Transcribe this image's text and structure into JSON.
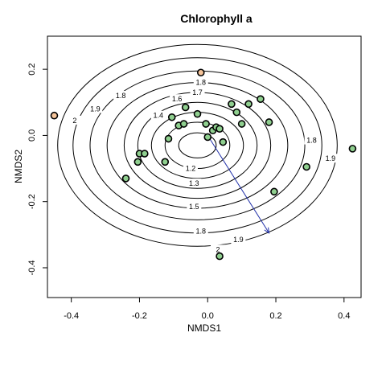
{
  "chart_data": {
    "type": "scatter",
    "title": "Chlorophyll a",
    "xlabel": "NMDS1",
    "ylabel": "NMDS2",
    "xlim": [
      -0.47,
      0.45
    ],
    "ylim": [
      -0.49,
      0.3
    ],
    "xticks": [
      "-0.4",
      "-0.2",
      "0.0",
      "0.2",
      "0.4"
    ],
    "xtick_values": [
      -0.4,
      -0.2,
      0.0,
      0.2,
      0.4
    ],
    "yticks": [
      "-0.4",
      "-0.2",
      "0.0",
      "0.2"
    ],
    "ytick_values": [
      -0.4,
      -0.2,
      0.0,
      0.2
    ],
    "grid": false,
    "contour_center": [
      -0.03,
      -0.03
    ],
    "contours": [
      {
        "level": "1.2",
        "rx": 0.055,
        "ry": 0.038,
        "label_at": [
          -0.05,
          -0.1
        ]
      },
      {
        "level": "1.3",
        "rx": 0.095,
        "ry": 0.07,
        "label_at": [
          -0.04,
          -0.145
        ]
      },
      {
        "level": "1.4",
        "rx": 0.135,
        "ry": 0.1,
        "label_at": [
          -0.145,
          0.06
        ]
      },
      {
        "level": "1.5",
        "rx": 0.175,
        "ry": 0.13,
        "label_at": [
          -0.04,
          -0.215
        ]
      },
      {
        "level": "1.6",
        "rx": 0.215,
        "ry": 0.16,
        "label_at": [
          -0.09,
          0.11
        ]
      },
      {
        "level": "1.7",
        "rx": 0.265,
        "ry": 0.19,
        "label_at": [
          -0.03,
          0.13
        ]
      },
      {
        "level": "1.8",
        "rx": 0.315,
        "ry": 0.225,
        "label_at": [
          -0.02,
          0.16
        ]
      },
      {
        "level": "1.9",
        "rx": 0.365,
        "ry": 0.265,
        "label_at": [
          0.09,
          -0.315
        ]
      },
      {
        "level": "2",
        "rx": 0.41,
        "ry": 0.305,
        "label_at": [
          0.03,
          -0.345
        ]
      }
    ],
    "extra_contour_labels": [
      {
        "text": "1.8",
        "x": -0.255,
        "y": 0.12
      },
      {
        "text": "1.9",
        "x": -0.33,
        "y": 0.08
      },
      {
        "text": "2",
        "x": -0.39,
        "y": 0.045
      },
      {
        "text": "1.8",
        "x": 0.305,
        "y": -0.015
      },
      {
        "text": "1.9",
        "x": 0.36,
        "y": -0.07
      },
      {
        "text": "1.8",
        "x": -0.02,
        "y": -0.29
      }
    ],
    "points": [
      {
        "x": -0.45,
        "y": 0.06,
        "color": "#f5c49a"
      },
      {
        "x": -0.02,
        "y": 0.19,
        "color": "#f5c49a"
      },
      {
        "x": -0.065,
        "y": 0.085,
        "color": "#8fcf8f"
      },
      {
        "x": -0.105,
        "y": 0.055,
        "color": "#8fcf8f"
      },
      {
        "x": -0.03,
        "y": 0.065,
        "color": "#8fcf8f"
      },
      {
        "x": -0.085,
        "y": 0.03,
        "color": "#8fcf8f"
      },
      {
        "x": -0.07,
        "y": 0.035,
        "color": "#8fcf8f"
      },
      {
        "x": -0.005,
        "y": 0.035,
        "color": "#8fcf8f"
      },
      {
        "x": -0.115,
        "y": -0.01,
        "color": "#8fcf8f"
      },
      {
        "x": -0.2,
        "y": -0.055,
        "color": "#8fcf8f"
      },
      {
        "x": -0.185,
        "y": -0.055,
        "color": "#8fcf8f"
      },
      {
        "x": -0.205,
        "y": -0.08,
        "color": "#8fcf8f"
      },
      {
        "x": -0.125,
        "y": -0.08,
        "color": "#8fcf8f"
      },
      {
        "x": -0.24,
        "y": -0.13,
        "color": "#8fcf8f"
      },
      {
        "x": 0.0,
        "y": -0.005,
        "color": "#8fcf8f"
      },
      {
        "x": 0.015,
        "y": 0.015,
        "color": "#8fcf8f"
      },
      {
        "x": 0.025,
        "y": 0.025,
        "color": "#8fcf8f"
      },
      {
        "x": 0.035,
        "y": 0.02,
        "color": "#8fcf8f"
      },
      {
        "x": 0.045,
        "y": -0.02,
        "color": "#8fcf8f"
      },
      {
        "x": 0.07,
        "y": 0.095,
        "color": "#8fcf8f"
      },
      {
        "x": 0.085,
        "y": 0.07,
        "color": "#8fcf8f"
      },
      {
        "x": 0.1,
        "y": 0.035,
        "color": "#8fcf8f"
      },
      {
        "x": 0.12,
        "y": 0.095,
        "color": "#8fcf8f"
      },
      {
        "x": 0.155,
        "y": 0.11,
        "color": "#8fcf8f"
      },
      {
        "x": 0.18,
        "y": 0.04,
        "color": "#8fcf8f"
      },
      {
        "x": 0.195,
        "y": -0.17,
        "color": "#8fcf8f"
      },
      {
        "x": 0.29,
        "y": -0.095,
        "color": "#8fcf8f"
      },
      {
        "x": 0.425,
        "y": -0.04,
        "color": "#8fcf8f"
      },
      {
        "x": 0.035,
        "y": -0.365,
        "color": "#8fcf8f"
      }
    ],
    "arrow": {
      "from": [
        0.0,
        0.0
      ],
      "to": [
        0.18,
        -0.295
      ],
      "color": "#1f2fa8"
    }
  }
}
